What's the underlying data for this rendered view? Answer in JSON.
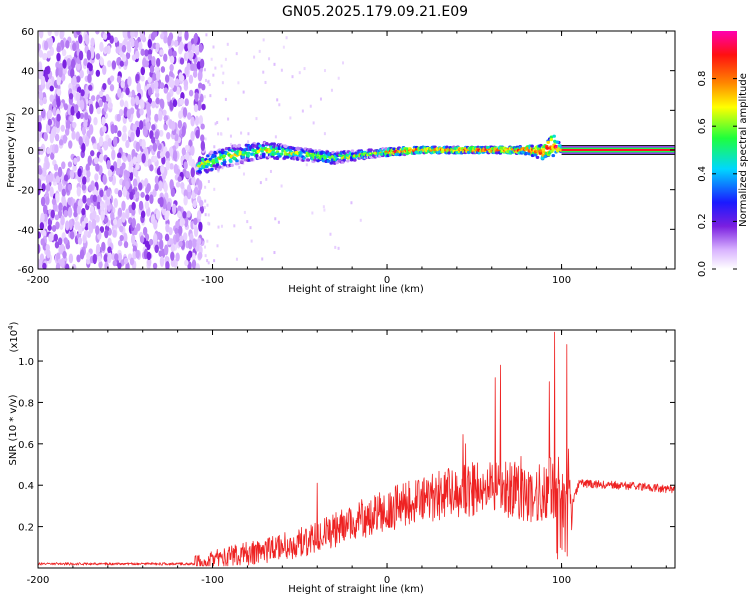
{
  "figure_title": "GN05.2025.179.09.21.E09",
  "chart_data": [
    {
      "type": "heatmap",
      "title": "GN05.2025.179.09.21.E09",
      "xlabel": "Height of straight line (km)",
      "ylabel": "Frequency (Hz)",
      "xlim": [
        -200,
        165
      ],
      "ylim": [
        -60,
        60
      ],
      "xticks": [
        -200,
        -100,
        0,
        100
      ],
      "yticks": [
        -60,
        -40,
        -20,
        0,
        20,
        40,
        60
      ],
      "colorbar": {
        "label": "Normalized spectral amplitude",
        "range": [
          0.0,
          1.0
        ],
        "ticks": [
          "0.0",
          "0.2",
          "0.4",
          "0.6",
          "0.8"
        ],
        "colormap": [
          "#ffffff",
          "#d9b3ff",
          "#7a1fe0",
          "#1a1aff",
          "#00d7ff",
          "#1eff3c",
          "#ffff00",
          "#ff8800",
          "#ff1010",
          "#ff00b0"
        ]
      },
      "noise_region_x": [
        -200,
        -105
      ],
      "ridge": {
        "x": [
          -108,
          -90,
          -70,
          -50,
          -30,
          -10,
          0,
          20,
          40,
          60,
          80,
          90,
          95,
          100,
          165
        ],
        "y": [
          -8,
          -3,
          0,
          -2,
          -4,
          -2,
          -1,
          0,
          0,
          0,
          0,
          -1,
          3,
          0,
          0
        ],
        "spread_hz": [
          5,
          5,
          4,
          3,
          3,
          2,
          2,
          1.5,
          1.5,
          1.5,
          2,
          4,
          6,
          1,
          1
        ]
      }
    },
    {
      "type": "line",
      "xlabel": "Height of straight line (km)",
      "ylabel": "SNR (10 * v/v)",
      "y_multiplier": "(x10^4)",
      "xlim": [
        -200,
        165
      ],
      "ylim": [
        0,
        1.15
      ],
      "xticks": [
        -200,
        -100,
        0,
        100
      ],
      "yticks": [
        0.2,
        0.4,
        0.6,
        0.8,
        1.0
      ],
      "line_color": "#ee2222",
      "series": [
        {
          "x": [
            -200,
            -150,
            -110,
            -100,
            -80,
            -60,
            -40,
            -20,
            0,
            20,
            40,
            50,
            60,
            70,
            80,
            90,
            96,
            100,
            104,
            110,
            130,
            150,
            165
          ],
          "y": [
            0.02,
            0.02,
            0.02,
            0.04,
            0.07,
            0.1,
            0.15,
            0.22,
            0.28,
            0.33,
            0.37,
            0.38,
            0.39,
            0.38,
            0.36,
            0.38,
            0.4,
            0.38,
            0.25,
            0.41,
            0.4,
            0.39,
            0.38
          ],
          "peaks": [
            {
              "x": -40,
              "y": 0.41
            },
            {
              "x": 45,
              "y": 0.6
            },
            {
              "x": 62,
              "y": 0.92
            },
            {
              "x": 65,
              "y": 0.98
            },
            {
              "x": 93,
              "y": 0.9
            },
            {
              "x": 96,
              "y": 1.14
            },
            {
              "x": 103,
              "y": 1.08
            }
          ]
        }
      ]
    }
  ]
}
